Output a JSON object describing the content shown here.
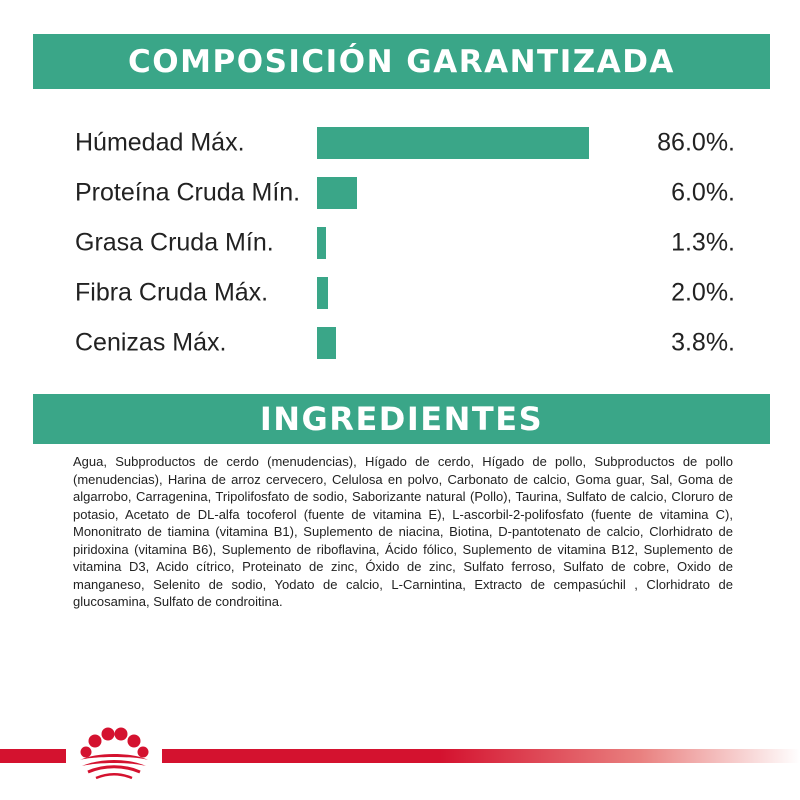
{
  "composition": {
    "title": "COMPOSICIÓN GARANTIZADA",
    "rows": [
      {
        "label": "Húmedad Máx.",
        "value": "86.0%.",
        "fill": 0.955
      },
      {
        "label": "Proteína Cruda Mín.",
        "value": "6.0%.",
        "fill": 0.14
      },
      {
        "label": "Grasa Cruda Mín.",
        "value": "1.3%.",
        "fill": 0.03
      },
      {
        "label": "Fibra Cruda Máx.",
        "value": "2.0%.",
        "fill": 0.04
      },
      {
        "label": "Cenizas Máx.",
        "value": "3.8%.",
        "fill": 0.065
      }
    ]
  },
  "ingredients": {
    "title": "INGREDIENTES",
    "text": "Agua, Subproductos de cerdo (menudencias), Hígado de cerdo, Hígado de pollo, Subproductos de pollo (menudencias), Harina de arroz cervecero, Celulosa en polvo, Carbonato de calcio, Goma guar, Sal, Goma de algarrobo, Carragenina, Tripolifosfato de sodio, Saborizante natural (Pollo), Taurina, Sulfato de calcio, Cloruro de potasio, Acetato de DL-alfa tocoferol (fuente de vitamina E), L-ascorbil-2-polifosfato (fuente de vitamina C), Mononitrato de tiamina (vitamina B1), Suplemento de niacina, Biotina, D-pantotenato de calcio, Clorhidrato de piridoxina (vitamina B6), Suplemento de riboflavina, Ácido fólico, Suplemento de vitamina B12, Suplemento de vitamina D3, Acido cítrico, Proteinato de zinc, Óxido de zinc, Sulfato ferroso, Sulfato de cobre, Oxido de manganeso, Selenito de sodio, Yodato de calcio, L-Carnintina, Extracto de cempasúchil , Clorhidrato de glucosamina, Sulfato de condroitina."
  },
  "colors": {
    "accent_green": "#3aa688",
    "brand_red": "#d4122f"
  },
  "footer": {
    "logo_icon": "royal-canin-crown-icon"
  }
}
